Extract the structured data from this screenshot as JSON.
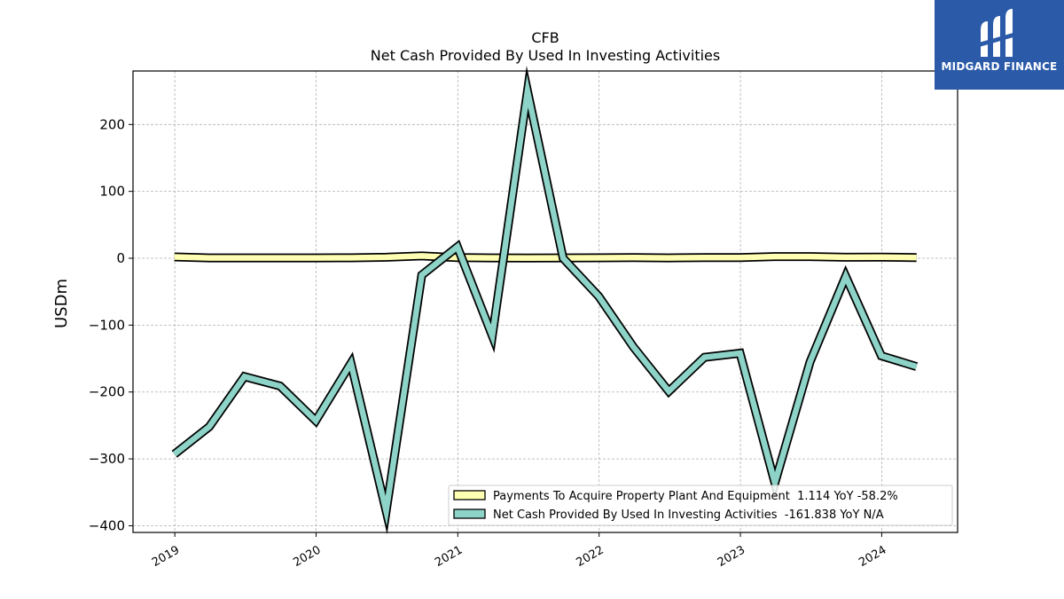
{
  "brand": {
    "name": "MIDGARD FINANCE",
    "color": "#2a5aa8"
  },
  "chart_data": {
    "type": "line",
    "title": "CFB",
    "subtitle": "Net Cash Provided By Used In Investing Activities",
    "ylabel": "USDm",
    "xlabel": "",
    "ylim": [
      -410,
      280
    ],
    "yticks": [
      -400,
      -300,
      -200,
      -100,
      0,
      100,
      200
    ],
    "ytick_labels": [
      "−400",
      "−300",
      "−200",
      "−100",
      "0",
      "100",
      "200"
    ],
    "xlim": [
      "2018-09-15",
      "2024-07-15"
    ],
    "xticks": [
      "2019-01-01",
      "2020-01-01",
      "2021-01-01",
      "2022-01-01",
      "2023-01-01",
      "2024-01-01"
    ],
    "xtick_labels": [
      "2019",
      "2020",
      "2021",
      "2022",
      "2023",
      "2024"
    ],
    "grid": true,
    "legend_position": "lower-right",
    "x": [
      "2018-12-31",
      "2019-03-31",
      "2019-06-30",
      "2019-09-30",
      "2019-12-31",
      "2020-03-31",
      "2020-06-30",
      "2020-09-30",
      "2020-12-31",
      "2021-03-31",
      "2021-06-30",
      "2021-09-30",
      "2021-12-31",
      "2022-03-31",
      "2022-06-30",
      "2022-09-30",
      "2022-12-31",
      "2023-03-31",
      "2023-06-30",
      "2023-09-30",
      "2023-12-31",
      "2024-03-31"
    ],
    "series": [
      {
        "name": "Payments To Acquire Property Plant And Equipment  1.114 YoY -58.2%",
        "color": "#ffffb3",
        "values": [
          2,
          0.5,
          0.5,
          0.5,
          0.5,
          0.7,
          1.5,
          3.5,
          1,
          0.5,
          0.3,
          0.5,
          0.7,
          1,
          0.5,
          1,
          1,
          2.5,
          2.5,
          1.5,
          1.8,
          1.1
        ]
      },
      {
        "name": "Net Cash Provided By Used In Investing Activities  -161.838 YoY N/A",
        "color": "#8dd3c7",
        "values": [
          -293,
          -252,
          -177,
          -191,
          -243,
          -157,
          -378,
          -25,
          17,
          -116,
          250,
          0,
          -57,
          -133,
          -199,
          -148,
          -142,
          -336,
          -155,
          -27,
          -146,
          -162
        ]
      }
    ]
  }
}
